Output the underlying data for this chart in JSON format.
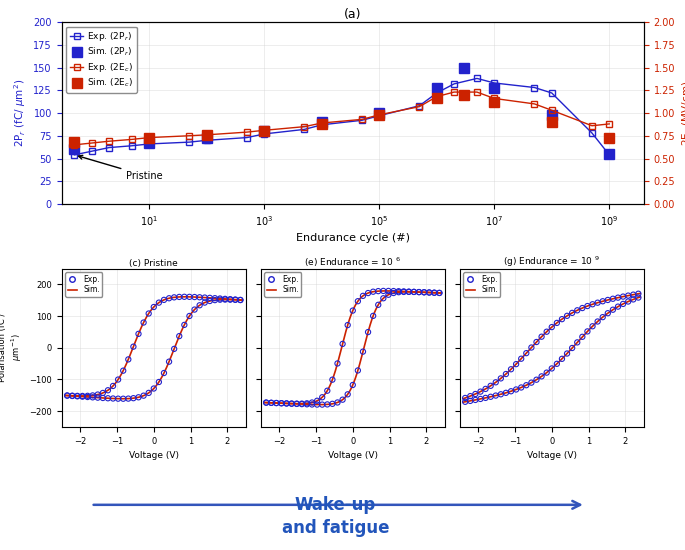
{
  "title_top": "(a)",
  "xlabel_top": "Endurance cycle (#)",
  "ylabel_left": "2P$_r$ (fC/ $\\mu$m$^2$)",
  "ylabel_right": "2E$_c$ (MV/cm)",
  "ylim_left": [
    0,
    200
  ],
  "ylim_right": [
    0,
    2
  ],
  "blue_color": "#2222cc",
  "red_color": "#cc2200",
  "exp_2Pr_x": [
    0.5,
    1,
    2,
    5,
    10,
    50,
    100,
    500,
    1000,
    5000,
    10000,
    50000,
    100000,
    500000,
    1000000,
    2000000,
    5000000,
    10000000,
    50000000,
    100000000,
    500000000,
    1000000000
  ],
  "exp_2Pr_y": [
    54,
    58,
    62,
    64,
    66,
    68,
    70,
    73,
    77,
    82,
    87,
    92,
    97,
    108,
    122,
    132,
    138,
    133,
    128,
    122,
    78,
    54
  ],
  "sim_2Pr_x": [
    0.5,
    10,
    100,
    1000,
    10000,
    100000,
    1000000,
    3000000,
    10000000,
    100000000,
    1000000000
  ],
  "sim_2Pr_y": [
    60,
    67,
    72,
    80,
    90,
    100,
    128,
    150,
    128,
    98,
    55
  ],
  "exp_2Ec_x": [
    0.5,
    1,
    2,
    5,
    10,
    50,
    100,
    500,
    1000,
    5000,
    10000,
    50000,
    100000,
    500000,
    1000000,
    2000000,
    5000000,
    10000000,
    50000000,
    100000000,
    500000000,
    1000000000
  ],
  "exp_2Ec_y": [
    0.65,
    0.67,
    0.69,
    0.71,
    0.73,
    0.75,
    0.76,
    0.79,
    0.81,
    0.85,
    0.89,
    0.93,
    0.98,
    1.07,
    1.18,
    1.23,
    1.23,
    1.16,
    1.1,
    1.03,
    0.86,
    0.88
  ],
  "sim_2Ec_x": [
    0.5,
    10,
    100,
    1000,
    10000,
    100000,
    1000000,
    3000000,
    10000000,
    100000000,
    1000000000
  ],
  "sim_2Ec_y": [
    0.68,
    0.73,
    0.76,
    0.8,
    0.88,
    0.98,
    1.16,
    1.2,
    1.12,
    0.9,
    0.73
  ],
  "pristine_label": "Pristine",
  "sub_titles": [
    "(c) Pristine",
    "(e) Endurance = 10 $^6$",
    "(g) Endurance = 10 $^9$"
  ],
  "sub_xlabel": "Voltage (V)",
  "arrow_label": "Wake-up\nand fatigue",
  "xlim_sub": [
    -2.5,
    2.5
  ],
  "ylim_sub": [
    -250,
    250
  ]
}
